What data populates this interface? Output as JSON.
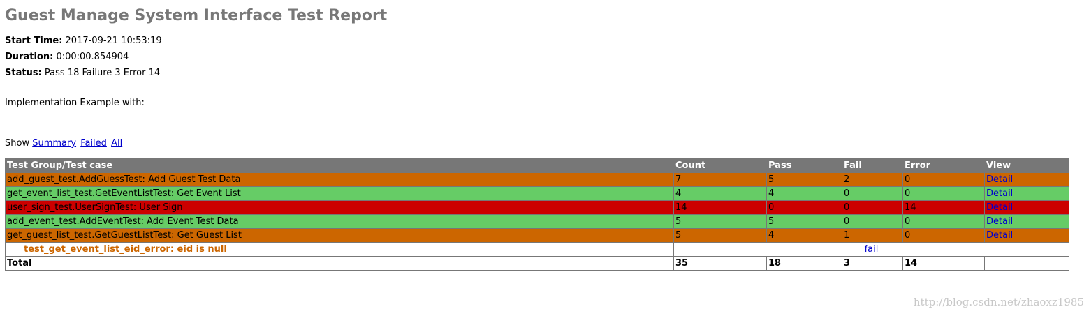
{
  "title": "Guest Manage System Interface Test Report",
  "attributes": {
    "start_label": "Start Time:",
    "start_value": "2017-09-21 10:53:19",
    "duration_label": "Duration:",
    "duration_value": "0:00:00.854904",
    "status_label": "Status:",
    "status_value": "Pass 18 Failure 3 Error 14"
  },
  "description": "Implementation Example with:",
  "show_bar": {
    "label": "Show",
    "summary": "Summary",
    "failed": "Failed",
    "all": "All"
  },
  "table": {
    "headers": [
      "Test Group/Test case",
      "Count",
      "Pass",
      "Fail",
      "Error",
      "View"
    ],
    "rows": [
      {
        "name": "add_guest_test.AddGuessTest: Add Guest Test Data",
        "count": "7",
        "pass": "5",
        "fail": "2",
        "error": "0",
        "view": "Detail",
        "status": "fail"
      },
      {
        "name": "get_event_list_test.GetEventListTest: Get Event List",
        "count": "4",
        "pass": "4",
        "fail": "0",
        "error": "0",
        "view": "Detail",
        "status": "pass"
      },
      {
        "name": "user_sign_test.UserSignTest: User Sign",
        "count": "14",
        "pass": "0",
        "fail": "0",
        "error": "14",
        "view": "Detail",
        "status": "error"
      },
      {
        "name": "add_event_test.AddEventTest: Add Event Test Data",
        "count": "5",
        "pass": "5",
        "fail": "0",
        "error": "0",
        "view": "Detail",
        "status": "pass"
      },
      {
        "name": "get_guest_list_test.GetGuestListTest: Get Guest List",
        "count": "5",
        "pass": "4",
        "fail": "1",
        "error": "0",
        "view": "Detail",
        "status": "fail"
      }
    ],
    "case_row": {
      "name": "test_get_event_list_eid_error: eid is null",
      "link": "fail"
    },
    "total": {
      "label": "Total",
      "count": "35",
      "pass": "18",
      "fail": "3",
      "error": "14"
    }
  },
  "watermark": "http://blog.csdn.net/zhaoxz1985",
  "colors": {
    "pass": "#66cc66",
    "fail": "#cc6600",
    "error": "#cc0000",
    "header": "#777777",
    "title": "#777777",
    "link": "#0000cc"
  }
}
